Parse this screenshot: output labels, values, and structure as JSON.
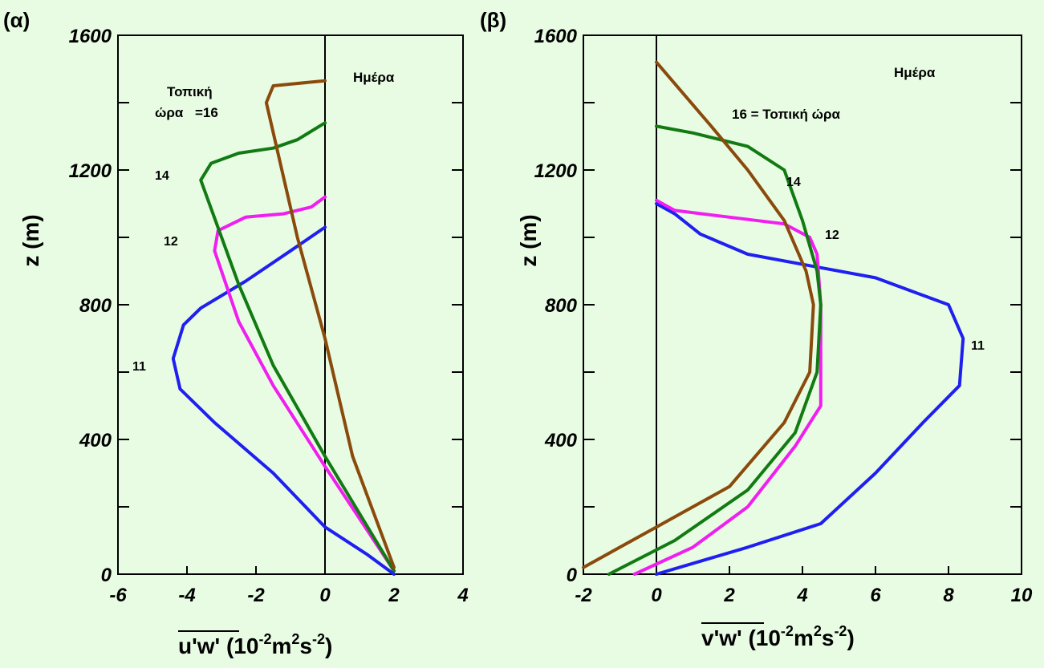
{
  "chart_data": [
    {
      "type": "line",
      "panel_label": "(α)",
      "xlabel_main": "u'w'",
      "xlabel_units": "(10",
      "xlabel_exp1": "-2",
      "xlabel_m": "m",
      "xlabel_exp2": "2",
      "xlabel_s": "s",
      "xlabel_exp3": "-2",
      "xlabel_close": ")",
      "ylabel": "z (m)",
      "xlim": [
        -6,
        4
      ],
      "ylim": [
        0,
        1600
      ],
      "xticks": [
        "-6",
        "-4",
        "-2",
        "0",
        "2",
        "4"
      ],
      "yticks": [
        "0",
        "400",
        "800",
        "1200",
        "1600"
      ],
      "annotations": {
        "day": "Ημέρα",
        "local_time_line1": "Τοπική",
        "local_time_line2": "ώρα",
        "local_time_value": "=16",
        "label_14": "14",
        "label_12": "12",
        "label_11": "11"
      },
      "series": [
        {
          "name": "11",
          "color": "#1f1ff0",
          "points": [
            [
              2,
              0
            ],
            [
              1.2,
              60
            ],
            [
              0,
              140
            ],
            [
              -1.5,
              300
            ],
            [
              -3.2,
              450
            ],
            [
              -4.2,
              550
            ],
            [
              -4.4,
              640
            ],
            [
              -4.1,
              740
            ],
            [
              -3.6,
              790
            ],
            [
              -2.3,
              870
            ],
            [
              -1,
              960
            ],
            [
              0,
              1030
            ]
          ]
        },
        {
          "name": "12",
          "color": "#f01ef0",
          "points": [
            [
              2,
              10
            ],
            [
              0,
              320
            ],
            [
              -1.5,
              560
            ],
            [
              -2.5,
              750
            ],
            [
              -3.2,
              960
            ],
            [
              -3.1,
              1020
            ],
            [
              -2.3,
              1060
            ],
            [
              -1.2,
              1070
            ],
            [
              -0.4,
              1090
            ],
            [
              0,
              1120
            ]
          ]
        },
        {
          "name": "14",
          "color": "#127a12",
          "points": [
            [
              2,
              10
            ],
            [
              0,
              350
            ],
            [
              -1.5,
              620
            ],
            [
              -2.5,
              860
            ],
            [
              -3.6,
              1170
            ],
            [
              -3.3,
              1220
            ],
            [
              -2.5,
              1250
            ],
            [
              -1.5,
              1265
            ],
            [
              -0.8,
              1290
            ],
            [
              0,
              1340
            ]
          ]
        },
        {
          "name": "16",
          "color": "#8a4a0c",
          "points": [
            [
              2,
              20
            ],
            [
              0.8,
              350
            ],
            [
              0,
              700
            ],
            [
              -0.8,
              1000
            ],
            [
              -1.7,
              1400
            ],
            [
              -1.5,
              1450
            ],
            [
              -1,
              1455
            ],
            [
              0,
              1465
            ]
          ]
        }
      ]
    },
    {
      "type": "line",
      "panel_label": "(β)",
      "xlabel_main": "v'w'",
      "xlabel_units": "(10",
      "xlabel_exp1": "-2",
      "xlabel_m": "m",
      "xlabel_exp2": "2",
      "xlabel_s": "s",
      "xlabel_exp3": "-2",
      "xlabel_close": ")",
      "ylabel": "z (m)",
      "xlim": [
        -2,
        10
      ],
      "ylim": [
        0,
        1600
      ],
      "xticks": [
        "-2",
        "0",
        "2",
        "4",
        "6",
        "8",
        "10"
      ],
      "yticks": [
        "0",
        "400",
        "800",
        "1200",
        "1600"
      ],
      "annotations": {
        "day": "Ημέρα",
        "local_time": "16 = Τοπική ώρα",
        "label_14": "14",
        "label_12": "12",
        "label_11": "11"
      },
      "series": [
        {
          "name": "11",
          "color": "#1f1ff0",
          "points": [
            [
              0,
              0
            ],
            [
              2.5,
              80
            ],
            [
              4.5,
              150
            ],
            [
              6,
              300
            ],
            [
              7.3,
              450
            ],
            [
              8.3,
              560
            ],
            [
              8.4,
              700
            ],
            [
              8,
              800
            ],
            [
              6,
              880
            ],
            [
              4.5,
              910
            ],
            [
              2.5,
              950
            ],
            [
              1.2,
              1010
            ],
            [
              0.5,
              1070
            ],
            [
              0,
              1100
            ]
          ]
        },
        {
          "name": "12",
          "color": "#f01ef0",
          "points": [
            [
              -0.6,
              0
            ],
            [
              1,
              80
            ],
            [
              2.5,
              200
            ],
            [
              3.8,
              380
            ],
            [
              4.5,
              500
            ],
            [
              4.5,
              800
            ],
            [
              4.4,
              950
            ],
            [
              4.2,
              1000
            ],
            [
              3.5,
              1040
            ],
            [
              2,
              1060
            ],
            [
              0.5,
              1080
            ],
            [
              0,
              1110
            ]
          ]
        },
        {
          "name": "14",
          "color": "#127a12",
          "points": [
            [
              -1.3,
              0
            ],
            [
              0.5,
              100
            ],
            [
              2.5,
              250
            ],
            [
              3.8,
              420
            ],
            [
              4.4,
              600
            ],
            [
              4.5,
              800
            ],
            [
              4.4,
              900
            ],
            [
              4,
              1050
            ],
            [
              3.5,
              1200
            ],
            [
              2.5,
              1270
            ],
            [
              1,
              1310
            ],
            [
              0,
              1330
            ]
          ]
        },
        {
          "name": "16",
          "color": "#8a4a0c",
          "points": [
            [
              -2,
              20
            ],
            [
              0,
              140
            ],
            [
              2,
              260
            ],
            [
              3.5,
              450
            ],
            [
              4.2,
              600
            ],
            [
              4.3,
              800
            ],
            [
              4.1,
              900
            ],
            [
              3.5,
              1050
            ],
            [
              2.5,
              1200
            ],
            [
              1.5,
              1330
            ],
            [
              0,
              1520
            ]
          ]
        }
      ]
    }
  ]
}
